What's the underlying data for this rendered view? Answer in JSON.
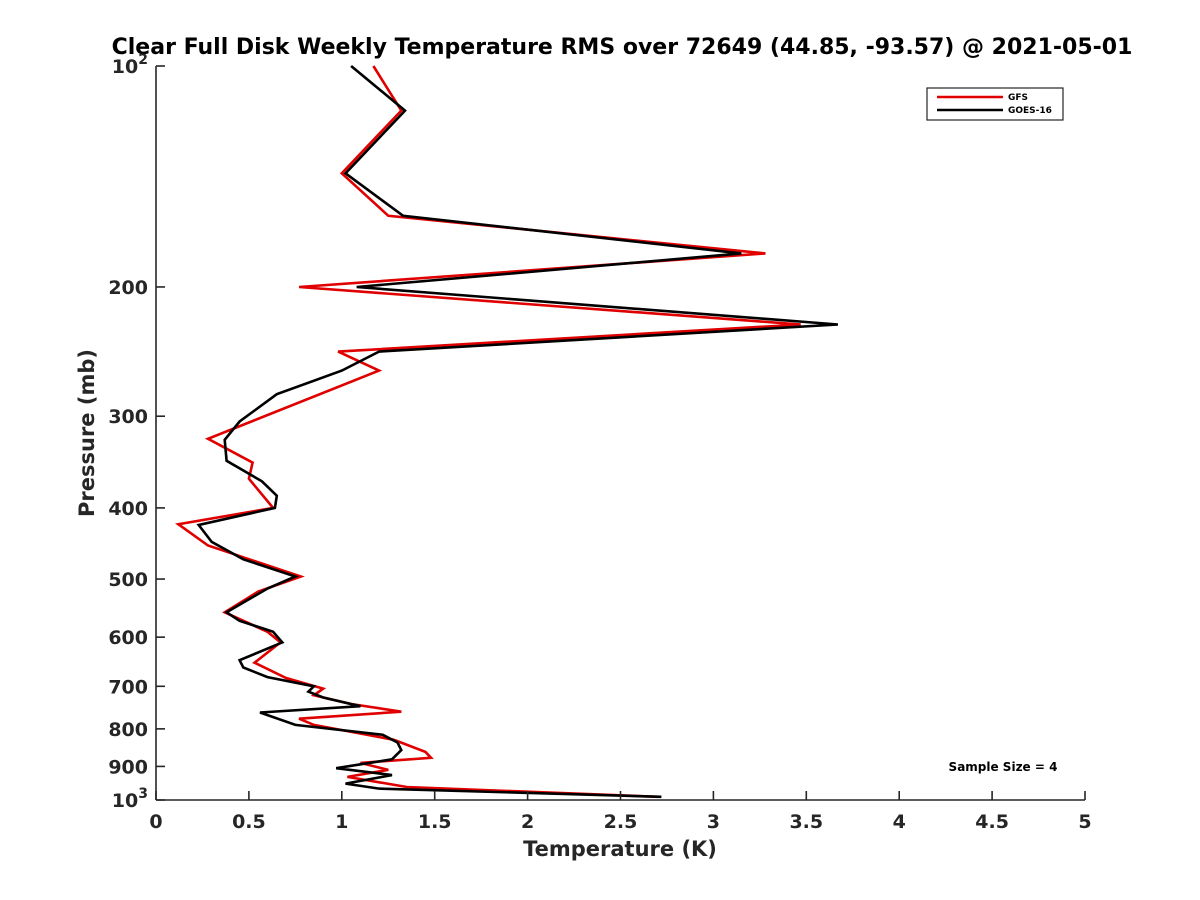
{
  "chart_data": {
    "type": "line",
    "title": "Clear Full Disk Weekly Temperature RMS over 72649 (44.85, -93.57) @ 2021-05-01",
    "xlabel": "Temperature (K)",
    "ylabel": "Pressure (mb)",
    "xlim": [
      0,
      5
    ],
    "ylim": [
      100,
      1000
    ],
    "y_scale": "log",
    "y_reversed": true,
    "grid": false,
    "legend_position": "top-right",
    "x_ticks": [
      "0",
      "0.5",
      "1",
      "1.5",
      "2",
      "2.5",
      "3",
      "3.5",
      "4",
      "4.5",
      "5"
    ],
    "x_tick_values": [
      0,
      0.5,
      1,
      1.5,
      2,
      2.5,
      3,
      3.5,
      4,
      4.5,
      5
    ],
    "y_ticks": [
      {
        "value": 100,
        "base": "10",
        "exp": "2"
      },
      {
        "value": 200,
        "base": "200",
        "exp": ""
      },
      {
        "value": 300,
        "base": "300",
        "exp": ""
      },
      {
        "value": 400,
        "base": "400",
        "exp": ""
      },
      {
        "value": 500,
        "base": "500",
        "exp": ""
      },
      {
        "value": 600,
        "base": "600",
        "exp": ""
      },
      {
        "value": 700,
        "base": "700",
        "exp": ""
      },
      {
        "value": 800,
        "base": "800",
        "exp": ""
      },
      {
        "value": 900,
        "base": "900",
        "exp": ""
      },
      {
        "value": 1000,
        "base": "10",
        "exp": "3"
      }
    ],
    "annotation": "Sample Size = 4",
    "series": [
      {
        "name": "GFS",
        "color": "#e00000",
        "points": [
          [
            1.17,
            100
          ],
          [
            1.32,
            115
          ],
          [
            1.0,
            140
          ],
          [
            1.25,
            160
          ],
          [
            3.28,
            180
          ],
          [
            0.77,
            200
          ],
          [
            3.47,
            225
          ],
          [
            0.98,
            245
          ],
          [
            1.2,
            260
          ],
          [
            0.28,
            322
          ],
          [
            0.52,
            347
          ],
          [
            0.5,
            365
          ],
          [
            0.63,
            400
          ],
          [
            0.12,
            421
          ],
          [
            0.28,
            450
          ],
          [
            0.78,
            496
          ],
          [
            0.55,
            520
          ],
          [
            0.37,
            555
          ],
          [
            0.6,
            590
          ],
          [
            0.67,
            610
          ],
          [
            0.53,
            650
          ],
          [
            0.7,
            682
          ],
          [
            0.9,
            705
          ],
          [
            0.85,
            720
          ],
          [
            1.05,
            740
          ],
          [
            1.32,
            758
          ],
          [
            0.77,
            775
          ],
          [
            0.85,
            790
          ],
          [
            1.28,
            828
          ],
          [
            1.45,
            860
          ],
          [
            1.48,
            876
          ],
          [
            1.1,
            890
          ],
          [
            1.25,
            910
          ],
          [
            1.03,
            930
          ],
          [
            1.35,
            960
          ],
          [
            2.7,
            990
          ]
        ]
      },
      {
        "name": "GOES-16",
        "color": "#000000",
        "points": [
          [
            1.05,
            100
          ],
          [
            1.34,
            115
          ],
          [
            1.02,
            140
          ],
          [
            1.33,
            160
          ],
          [
            3.15,
            180
          ],
          [
            1.08,
            200
          ],
          [
            3.67,
            225
          ],
          [
            1.2,
            245
          ],
          [
            1.0,
            260
          ],
          [
            0.65,
            280
          ],
          [
            0.45,
            305
          ],
          [
            0.37,
            323
          ],
          [
            0.38,
            345
          ],
          [
            0.57,
            368
          ],
          [
            0.65,
            385
          ],
          [
            0.64,
            400
          ],
          [
            0.23,
            422
          ],
          [
            0.3,
            445
          ],
          [
            0.47,
            470
          ],
          [
            0.75,
            496
          ],
          [
            0.6,
            515
          ],
          [
            0.38,
            555
          ],
          [
            0.45,
            570
          ],
          [
            0.63,
            590
          ],
          [
            0.68,
            610
          ],
          [
            0.45,
            645
          ],
          [
            0.47,
            660
          ],
          [
            0.6,
            680
          ],
          [
            0.85,
            700
          ],
          [
            0.82,
            712
          ],
          [
            0.9,
            725
          ],
          [
            1.1,
            745
          ],
          [
            0.56,
            760
          ],
          [
            0.75,
            790
          ],
          [
            1.22,
            815
          ],
          [
            1.3,
            835
          ],
          [
            1.32,
            855
          ],
          [
            1.27,
            880
          ],
          [
            0.97,
            905
          ],
          [
            1.27,
            925
          ],
          [
            1.02,
            950
          ],
          [
            1.2,
            965
          ],
          [
            2.72,
            990
          ]
        ]
      }
    ]
  }
}
